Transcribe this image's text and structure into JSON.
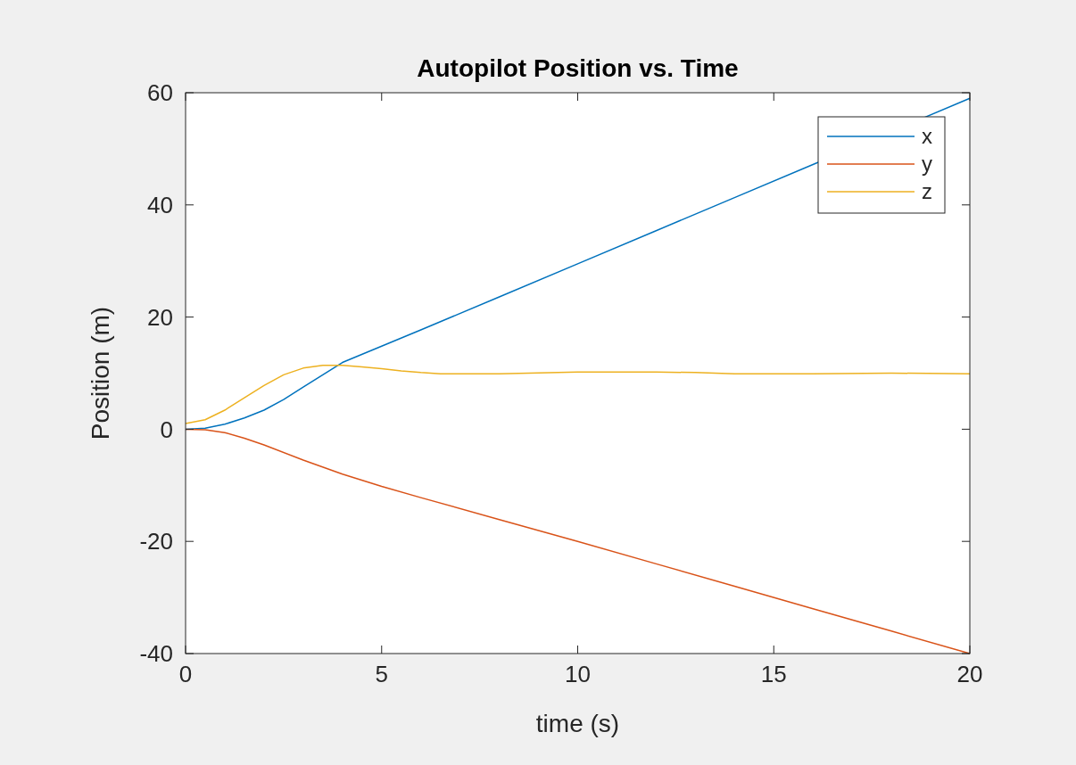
{
  "chart_data": {
    "type": "line",
    "title": "Autopilot Position vs. Time",
    "xlabel": "time (s)",
    "ylabel": "Position (m)",
    "xlim": [
      0,
      20
    ],
    "ylim": [
      -40,
      60
    ],
    "xticks": [
      0,
      5,
      10,
      15,
      20
    ],
    "yticks": [
      -40,
      -20,
      0,
      20,
      40,
      60
    ],
    "grid": false,
    "legend": "top right",
    "marker": "none",
    "line_style": "solid",
    "series": [
      {
        "name": "x",
        "color": "#0072bd",
        "x": [
          0,
          0.5,
          1,
          1.5,
          2,
          2.5,
          3,
          3.5,
          4,
          5,
          6,
          8,
          10,
          12,
          14,
          16,
          20
        ],
        "values": [
          0,
          0.2,
          0.9,
          2,
          3.4,
          5.3,
          7.5,
          9.7,
          11.9,
          14.8,
          17.7,
          23.6,
          29.5,
          35.4,
          41.3,
          47.2,
          59
        ]
      },
      {
        "name": "y",
        "color": "#d95319",
        "x": [
          0,
          0.5,
          1,
          1.5,
          2,
          3,
          4,
          5,
          6,
          8,
          10,
          12,
          14,
          16,
          18,
          20
        ],
        "values": [
          0,
          -0.1,
          -0.6,
          -1.6,
          -2.8,
          -5.5,
          -8,
          -10.2,
          -12.2,
          -16.1,
          -20,
          -24,
          -28,
          -32,
          -36,
          -40
        ]
      },
      {
        "name": "z",
        "color": "#edb120",
        "x": [
          0,
          0.5,
          1,
          1.5,
          2,
          2.5,
          3,
          3.5,
          4,
          4.5,
          5,
          5.5,
          6,
          6.5,
          8,
          10,
          12,
          13,
          14,
          16,
          18,
          20
        ],
        "values": [
          1,
          1.7,
          3.4,
          5.6,
          7.8,
          9.7,
          10.9,
          11.4,
          11.4,
          11.1,
          10.8,
          10.4,
          10.1,
          9.9,
          9.9,
          10.2,
          10.2,
          10.1,
          9.9,
          9.9,
          10,
          9.9
        ]
      }
    ]
  }
}
